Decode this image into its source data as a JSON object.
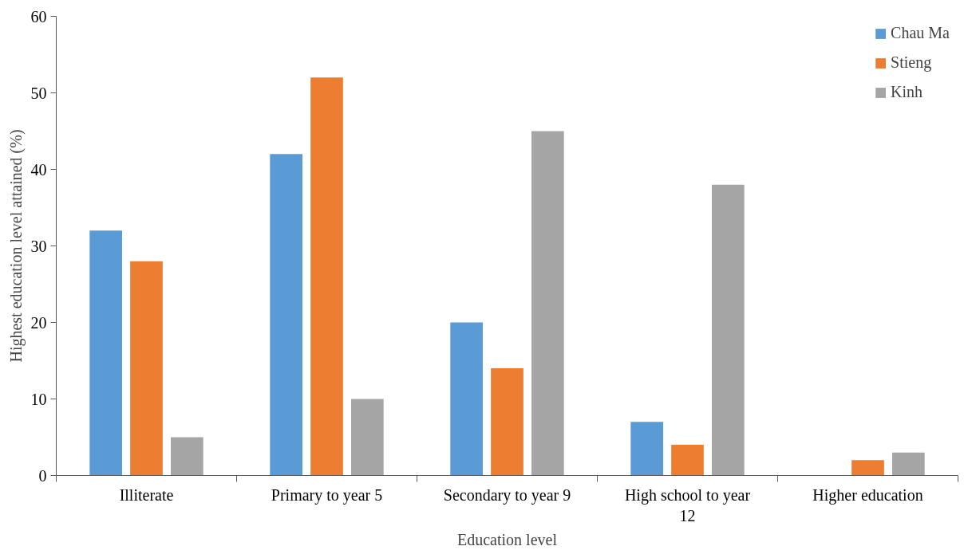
{
  "chart_data": {
    "type": "bar",
    "xlabel": "Education level",
    "ylabel": "Highest education level attained (%)",
    "categories": [
      "Illiterate",
      "Primary to year 5",
      "Secondary to year 9",
      "High school to year 12",
      "Higher education"
    ],
    "series": [
      {
        "name": "Chau Ma",
        "color": "#5b9bd5",
        "values": [
          32,
          42,
          20,
          7,
          0
        ]
      },
      {
        "name": "Stieng",
        "color": "#ed7d31",
        "values": [
          28,
          52,
          14,
          4,
          2
        ]
      },
      {
        "name": "Kinh",
        "color": "#a5a5a5",
        "values": [
          5,
          10,
          45,
          38,
          3
        ]
      }
    ],
    "ylim": [
      0,
      60
    ],
    "yticks": [
      0,
      10,
      20,
      30,
      40,
      50,
      60
    ],
    "grid": false,
    "legend": "top right"
  }
}
